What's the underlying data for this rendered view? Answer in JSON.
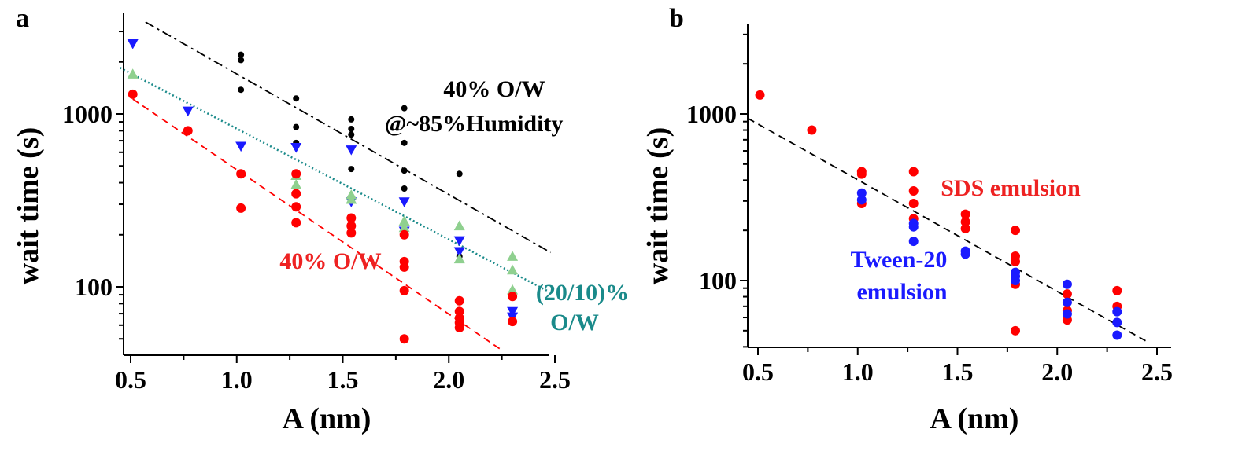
{
  "chart_data": [
    {
      "panel": "a",
      "type": "scatter",
      "xlabel": "A (nm)",
      "ylabel": "wait time (s)",
      "xlim": [
        0.45,
        2.5
      ],
      "ylim": [
        40,
        4000
      ],
      "yscale": "log",
      "xticks": [
        "0.5",
        "1.0",
        "1.5",
        "2.0",
        "2.5"
      ],
      "yticks": [
        "100",
        "1000"
      ],
      "series": [
        {
          "name": "40% O/W @~85%Humidity",
          "color": "#000000",
          "marker": "circle-small",
          "points": [
            [
              1.02,
              2200
            ],
            [
              1.02,
              2050
            ],
            [
              1.02,
              1380
            ],
            [
              1.28,
              1230
            ],
            [
              1.28,
              840
            ],
            [
              1.28,
              680
            ],
            [
              1.54,
              930
            ],
            [
              1.54,
              820
            ],
            [
              1.54,
              760
            ],
            [
              1.54,
              480
            ],
            [
              1.79,
              1080
            ],
            [
              1.79,
              680
            ],
            [
              1.79,
              470
            ],
            [
              1.79,
              370
            ],
            [
              2.05,
              450
            ],
            [
              2.05,
              150
            ]
          ],
          "fit": {
            "x": [
              0.57,
              2.48
            ],
            "y": [
              3400,
              158
            ],
            "style": "dash-dot"
          }
        },
        {
          "name": "Blue triangles",
          "color": "#1a1aff",
          "marker": "triangle-down",
          "points": [
            [
              0.51,
              2550
            ],
            [
              0.77,
              1040
            ],
            [
              1.02,
              650
            ],
            [
              1.28,
              640
            ],
            [
              1.54,
              620
            ],
            [
              1.54,
              310
            ],
            [
              1.79,
              310
            ],
            [
              1.79,
              210
            ],
            [
              2.05,
              185
            ],
            [
              2.05,
              160
            ],
            [
              2.3,
              72
            ],
            [
              2.3,
              67
            ]
          ]
        },
        {
          "name": "(20/10)% O/W",
          "color": "#8fd08f",
          "marker": "triangle-up",
          "points": [
            [
              0.51,
              1700
            ],
            [
              1.28,
              440
            ],
            [
              1.28,
              390
            ],
            [
              1.54,
              340
            ],
            [
              1.54,
              320
            ],
            [
              1.79,
              240
            ],
            [
              1.79,
              220
            ],
            [
              2.05,
              225
            ],
            [
              2.05,
              145
            ],
            [
              2.3,
              150
            ],
            [
              2.3,
              125
            ],
            [
              2.3,
              96
            ]
          ],
          "fit": {
            "x": [
              0.45,
              2.47
            ],
            "y": [
              1850,
              94
            ],
            "style": "dotted",
            "color": "#1a8a8a"
          }
        },
        {
          "name": "40% O/W",
          "color": "#ff0000",
          "marker": "circle",
          "points": [
            [
              0.51,
              1300
            ],
            [
              0.77,
              800
            ],
            [
              1.02,
              450
            ],
            [
              1.02,
              285
            ],
            [
              1.28,
              450
            ],
            [
              1.28,
              345
            ],
            [
              1.28,
              290
            ],
            [
              1.28,
              235
            ],
            [
              1.54,
              250
            ],
            [
              1.54,
              225
            ],
            [
              1.54,
              205
            ],
            [
              1.79,
              200
            ],
            [
              1.79,
              140
            ],
            [
              1.79,
              130
            ],
            [
              1.79,
              95
            ],
            [
              1.79,
              50
            ],
            [
              2.05,
              83
            ],
            [
              2.05,
              72
            ],
            [
              2.05,
              66
            ],
            [
              2.05,
              62
            ],
            [
              2.05,
              58
            ],
            [
              2.3,
              88
            ],
            [
              2.3,
              63
            ]
          ],
          "fit": {
            "x": [
              0.51,
              2.25
            ],
            "y": [
              1220,
              43
            ],
            "style": "dashed"
          }
        }
      ],
      "annotations": [
        {
          "text": "40% O/W",
          "color": "#000000"
        },
        {
          "text": "@~85%Humidity",
          "color": "#000000"
        },
        {
          "text": "40% O/W",
          "color": "#ee2222"
        },
        {
          "text": "(20/10)%",
          "color": "#1a8a8a"
        },
        {
          "text": "O/W",
          "color": "#1a8a8a"
        }
      ]
    },
    {
      "panel": "b",
      "type": "scatter",
      "xlabel": "A (nm)",
      "ylabel": "wait time (s)",
      "xlim": [
        0.45,
        2.5
      ],
      "ylim": [
        40,
        4000
      ],
      "yscale": "log",
      "xticks": [
        "0.5",
        "1.0",
        "1.5",
        "2.0",
        "2.5"
      ],
      "yticks": [
        "100",
        "1000"
      ],
      "series": [
        {
          "name": "SDS emulsion",
          "color": "#ff0000",
          "marker": "circle",
          "points": [
            [
              0.51,
              1300
            ],
            [
              0.77,
              800
            ],
            [
              1.02,
              450
            ],
            [
              1.02,
              435
            ],
            [
              1.02,
              290
            ],
            [
              1.28,
              450
            ],
            [
              1.28,
              345
            ],
            [
              1.28,
              290
            ],
            [
              1.28,
              235
            ],
            [
              1.54,
              250
            ],
            [
              1.54,
              225
            ],
            [
              1.54,
              205
            ],
            [
              1.79,
              200
            ],
            [
              1.79,
              140
            ],
            [
              1.79,
              130
            ],
            [
              1.79,
              95
            ],
            [
              1.79,
              50
            ],
            [
              2.05,
              83
            ],
            [
              2.05,
              66
            ],
            [
              2.05,
              58
            ],
            [
              2.3,
              87
            ],
            [
              2.3,
              70
            ]
          ]
        },
        {
          "name": "Tween-20 emulsion",
          "color": "#1a1aff",
          "marker": "circle",
          "points": [
            [
              1.02,
              335
            ],
            [
              1.02,
              305
            ],
            [
              1.28,
              220
            ],
            [
              1.28,
              210
            ],
            [
              1.28,
              172
            ],
            [
              1.54,
              150
            ],
            [
              1.54,
              144
            ],
            [
              1.79,
              112
            ],
            [
              1.79,
              106
            ],
            [
              1.79,
              100
            ],
            [
              2.05,
              95
            ],
            [
              2.05,
              74
            ],
            [
              2.05,
              63
            ],
            [
              2.3,
              65
            ],
            [
              2.3,
              56
            ],
            [
              2.3,
              47
            ]
          ]
        }
      ],
      "fit": {
        "x": [
          0.45,
          2.45
        ],
        "y": [
          940,
          43
        ],
        "style": "dashed",
        "color": "#000000"
      },
      "annotations": [
        {
          "text": "SDS emulsion",
          "color": "#ee2222"
        },
        {
          "text": "Tween-20",
          "color": "#1a1aff"
        },
        {
          "text": "emulsion",
          "color": "#1a1aff"
        }
      ]
    }
  ]
}
